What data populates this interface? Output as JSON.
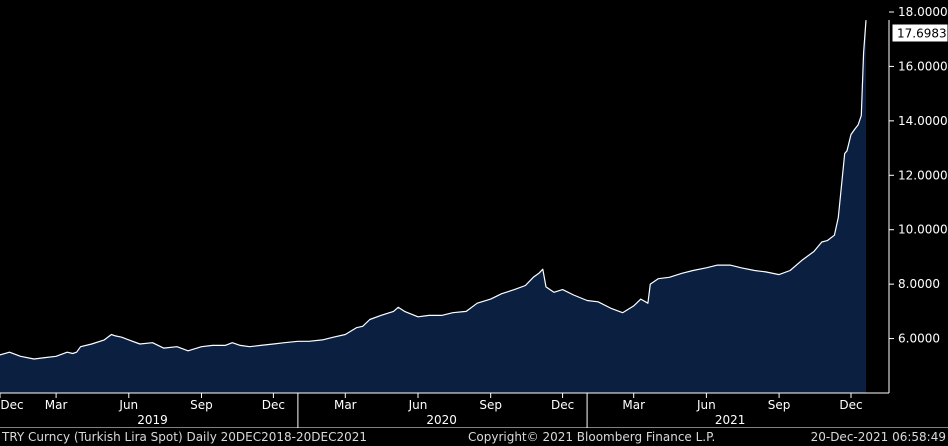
{
  "chart_data": {
    "type": "area",
    "ylim": [
      4.0,
      18.0
    ],
    "yticks": [
      6,
      8,
      10,
      12,
      14,
      16,
      18
    ],
    "ytick_labels": [
      "6.0000",
      "8.0000",
      "10.0000",
      "12.0000",
      "14.0000",
      "16.0000",
      "18.0000"
    ],
    "last_value_label": "17.6983",
    "x_start": "2018-12-20",
    "x_end": "2021-12-20",
    "month_ticks": [
      {
        "date": "2018-12-01",
        "label": "Dec"
      },
      {
        "date": "2019-03-01",
        "label": "Mar"
      },
      {
        "date": "2019-06-01",
        "label": "Jun"
      },
      {
        "date": "2019-09-01",
        "label": "Sep"
      },
      {
        "date": "2019-12-01",
        "label": "Dec"
      },
      {
        "date": "2020-03-01",
        "label": "Mar"
      },
      {
        "date": "2020-06-01",
        "label": "Jun"
      },
      {
        "date": "2020-09-01",
        "label": "Sep"
      },
      {
        "date": "2020-12-01",
        "label": "Dec"
      },
      {
        "date": "2021-03-01",
        "label": "Mar"
      },
      {
        "date": "2021-06-01",
        "label": "Jun"
      },
      {
        "date": "2021-09-01",
        "label": "Sep"
      },
      {
        "date": "2021-12-01",
        "label": "Dec"
      }
    ],
    "year_labels": [
      {
        "date": "2019-07-01",
        "label": "2019"
      },
      {
        "date": "2020-07-01",
        "label": "2020"
      },
      {
        "date": "2021-07-01",
        "label": "2021"
      }
    ],
    "year_separators": [
      "2020-01-01",
      "2021-01-01"
    ],
    "series": [
      {
        "x": [
          "2018-12-20",
          "2019-01-01",
          "2019-01-15",
          "2019-02-01",
          "2019-02-15",
          "2019-03-01",
          "2019-03-15",
          "2019-03-22",
          "2019-03-27",
          "2019-04-01",
          "2019-04-15",
          "2019-05-01",
          "2019-05-10",
          "2019-05-15",
          "2019-05-23",
          "2019-06-01",
          "2019-06-15",
          "2019-07-01",
          "2019-07-15",
          "2019-08-01",
          "2019-08-15",
          "2019-09-01",
          "2019-09-15",
          "2019-10-01",
          "2019-10-10",
          "2019-10-20",
          "2019-11-01",
          "2019-11-15",
          "2019-12-01",
          "2019-12-15",
          "2020-01-01",
          "2020-01-15",
          "2020-02-01",
          "2020-02-15",
          "2020-03-01",
          "2020-03-15",
          "2020-03-23",
          "2020-04-01",
          "2020-04-15",
          "2020-05-01",
          "2020-05-07",
          "2020-05-15",
          "2020-06-01",
          "2020-06-15",
          "2020-07-01",
          "2020-07-15",
          "2020-08-01",
          "2020-08-15",
          "2020-09-01",
          "2020-09-15",
          "2020-10-01",
          "2020-10-15",
          "2020-10-25",
          "2020-11-01",
          "2020-11-06",
          "2020-11-10",
          "2020-11-20",
          "2020-12-01",
          "2020-12-15",
          "2021-01-01",
          "2021-01-15",
          "2021-02-01",
          "2021-02-15",
          "2021-03-01",
          "2021-03-10",
          "2021-03-19",
          "2021-03-22",
          "2021-04-01",
          "2021-04-15",
          "2021-05-01",
          "2021-05-15",
          "2021-06-01",
          "2021-06-15",
          "2021-07-01",
          "2021-07-15",
          "2021-08-01",
          "2021-08-15",
          "2021-09-01",
          "2021-09-15",
          "2021-10-01",
          "2021-10-15",
          "2021-10-25",
          "2021-11-01",
          "2021-11-10",
          "2021-11-15",
          "2021-11-23",
          "2021-11-26",
          "2021-12-01",
          "2021-12-06",
          "2021-12-10",
          "2021-12-14",
          "2021-12-17",
          "2021-12-20"
        ],
        "y": [
          5.4,
          5.5,
          5.35,
          5.25,
          5.3,
          5.35,
          5.5,
          5.45,
          5.5,
          5.7,
          5.8,
          5.95,
          6.15,
          6.1,
          6.05,
          5.95,
          5.8,
          5.85,
          5.65,
          5.7,
          5.55,
          5.7,
          5.75,
          5.75,
          5.85,
          5.75,
          5.7,
          5.75,
          5.8,
          5.85,
          5.9,
          5.9,
          5.95,
          6.05,
          6.15,
          6.4,
          6.45,
          6.7,
          6.85,
          7.0,
          7.15,
          7.0,
          6.8,
          6.85,
          6.85,
          6.95,
          7.0,
          7.3,
          7.45,
          7.65,
          7.8,
          7.95,
          8.25,
          8.4,
          8.55,
          7.9,
          7.7,
          7.8,
          7.6,
          7.4,
          7.35,
          7.1,
          6.95,
          7.2,
          7.45,
          7.3,
          8.0,
          8.2,
          8.25,
          8.4,
          8.5,
          8.6,
          8.7,
          8.7,
          8.6,
          8.5,
          8.45,
          8.35,
          8.5,
          8.9,
          9.2,
          9.55,
          9.6,
          9.8,
          10.45,
          12.8,
          12.9,
          13.5,
          13.7,
          13.85,
          14.2,
          16.5,
          17.7
        ]
      }
    ]
  },
  "footer": {
    "left": "TRY Curncy (Turkish Lira Spot)  Daily 20DEC2018-20DEC2021",
    "center": "Copyright© 2021 Bloomberg Finance L.P.",
    "right": "20-Dec-2021 06:58:49"
  }
}
